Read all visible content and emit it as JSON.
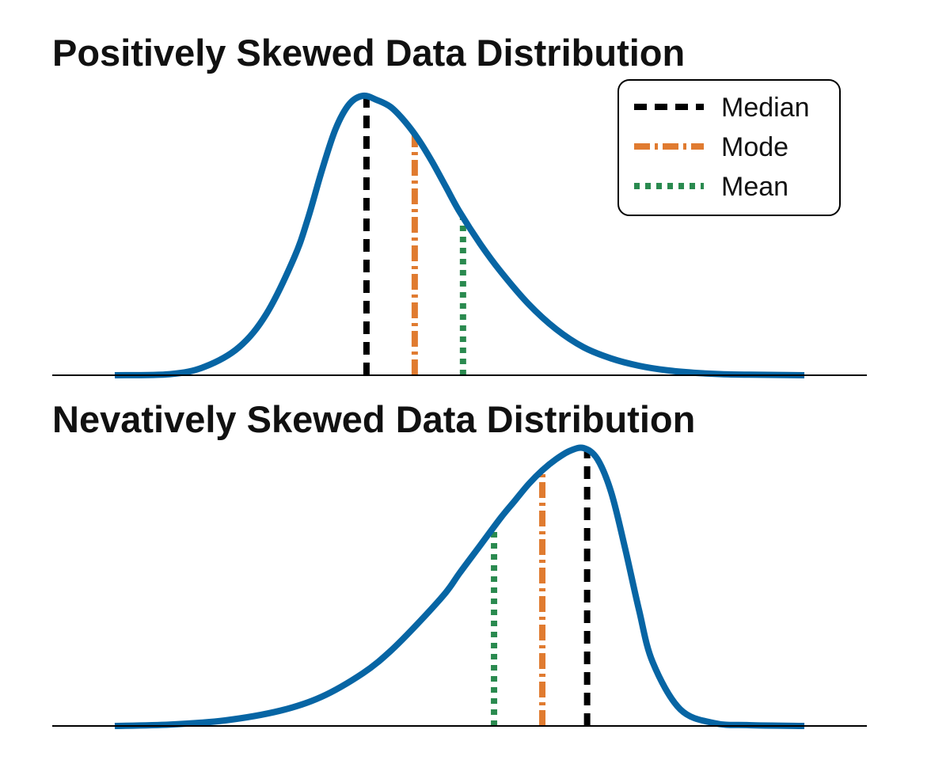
{
  "chart_data": [
    {
      "type": "line",
      "title": "Positively Skewed Data Distribution",
      "xlabel": "",
      "ylabel": "",
      "xlim": [
        0,
        100
      ],
      "ylim": [
        0,
        1
      ],
      "grid": false,
      "axes_visible": false,
      "curve": {
        "x": [
          0,
          8,
          13,
          18,
          22,
          26,
          28,
          30,
          32,
          34,
          36,
          38,
          40,
          42,
          44,
          46,
          48,
          50,
          53,
          56,
          60,
          64,
          68,
          72,
          76,
          80,
          84,
          88,
          92,
          96,
          100
        ],
        "y": [
          0,
          0.004,
          0.03,
          0.1,
          0.22,
          0.42,
          0.56,
          0.73,
          0.88,
          0.97,
          1.0,
          0.985,
          0.96,
          0.91,
          0.845,
          0.765,
          0.675,
          0.585,
          0.47,
          0.37,
          0.255,
          0.165,
          0.1,
          0.06,
          0.034,
          0.018,
          0.009,
          0.004,
          0.002,
          0.001,
          0
        ]
      },
      "markers": [
        {
          "name": "Median",
          "x": 36.5,
          "color": "#000000"
        },
        {
          "name": "Mode",
          "x": 43.5,
          "color": "#e07b30"
        },
        {
          "name": "Mean",
          "x": 50.5,
          "color": "#2a8a4f"
        }
      ],
      "legend": {
        "position": "top-right",
        "entries": [
          "Median",
          "Mode",
          "Mean"
        ]
      }
    },
    {
      "type": "line",
      "title": "Nevatively Skewed Data Distribution",
      "xlabel": "",
      "ylabel": "",
      "xlim": [
        0,
        100
      ],
      "ylim": [
        0,
        1
      ],
      "grid": false,
      "axes_visible": false,
      "curve": {
        "x": [
          0,
          8,
          16,
          24,
          30,
          36,
          40,
          44,
          48,
          50,
          53,
          56,
          58,
          60,
          62,
          64,
          66,
          68,
          70,
          72,
          74,
          76,
          78,
          82,
          87,
          92,
          100
        ],
        "y": [
          0,
          0.005,
          0.02,
          0.055,
          0.105,
          0.19,
          0.27,
          0.37,
          0.48,
          0.55,
          0.65,
          0.75,
          0.81,
          0.87,
          0.92,
          0.96,
          0.99,
          1.0,
          0.96,
          0.84,
          0.64,
          0.42,
          0.23,
          0.06,
          0.01,
          0.003,
          0
        ]
      },
      "markers": [
        {
          "name": "Mean",
          "x": 55.0,
          "color": "#2a8a4f"
        },
        {
          "name": "Mode",
          "x": 62.0,
          "color": "#e07b30"
        },
        {
          "name": "Median",
          "x": 68.5,
          "color": "#000000"
        }
      ]
    }
  ]
}
